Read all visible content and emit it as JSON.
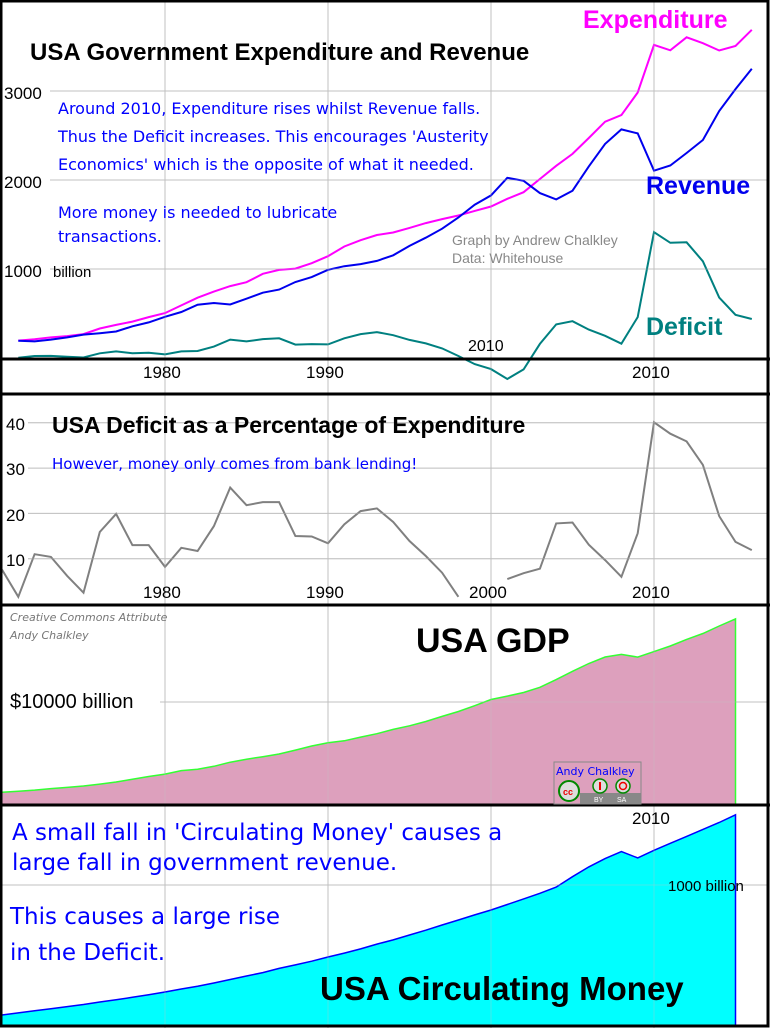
{
  "colors": {
    "expenditure": "#ff00ff",
    "revenue": "#0000ee",
    "deficit": "#008080",
    "deficit_pct": "#808080",
    "gdp_fill": "#dda0bd",
    "gdp_line": "#33ff33",
    "money_fill": "#00ffff",
    "money_line": "#0000ff",
    "annotation": "#0000ff",
    "grid": "#c0c0c0"
  },
  "chart_data": [
    {
      "type": "line",
      "title": "USA Government Expenditure and Revenue",
      "ylabel": "billion",
      "y_ticks": [
        "3000",
        "2000",
        "1000"
      ],
      "y_unit_label": "billion",
      "x_ticks": [
        "1980",
        "1990",
        "2010"
      ],
      "stray_label": "2010",
      "grid": true,
      "ylim": [
        0,
        3900
      ],
      "x": [
        1971,
        1972,
        1973,
        1974,
        1975,
        1976,
        1977,
        1978,
        1979,
        1980,
        1981,
        1982,
        1983,
        1984,
        1985,
        1986,
        1987,
        1988,
        1989,
        1990,
        1991,
        1992,
        1993,
        1994,
        1995,
        1996,
        1997,
        1998,
        1999,
        2000,
        2001,
        2002,
        2003,
        2004,
        2005,
        2006,
        2007,
        2008,
        2009,
        2010,
        2011,
        2012,
        2013,
        2014,
        2015,
        2016
      ],
      "series": [
        {
          "name": "Expenditure",
          "values": [
            196,
            210,
            231,
            246,
            269,
            332,
            372,
            409,
            459,
            504,
            591,
            678,
            746,
            808,
            852,
            946,
            990,
            1004,
            1065,
            1144,
            1253,
            1324,
            1382,
            1410,
            1462,
            1516,
            1561,
            1601,
            1653,
            1702,
            1789,
            1863,
            2011,
            2160,
            2293,
            2472,
            2655,
            2729,
            2983,
            3518,
            3457,
            3603,
            3537,
            3455,
            3506,
            3688
          ]
        },
        {
          "name": "Revenue",
          "values": [
            193,
            187,
            207,
            231,
            263,
            279,
            298,
            356,
            400,
            463,
            517,
            599,
            618,
            601,
            666,
            734,
            769,
            854,
            909,
            991,
            1032,
            1055,
            1091,
            1154,
            1259,
            1352,
            1453,
            1579,
            1722,
            1827,
            2025,
            1991,
            1853,
            1782,
            1880,
            2153,
            2406,
            2568,
            2524,
            2105,
            2163,
            2303,
            2450,
            2775,
            3021,
            3250
          ]
        },
        {
          "name": "Deficit",
          "values": [
            3,
            23,
            24,
            15,
            6,
            53,
            74,
            53,
            59,
            41,
            74,
            79,
            128,
            207,
            186,
            212,
            221,
            150,
            156,
            153,
            221,
            269,
            291,
            256,
            203,
            164,
            108,
            22,
            -69,
            -125,
            -236,
            -128,
            158,
            378,
            413,
            319,
            249,
            161,
            459,
            1413,
            1294,
            1300,
            1087,
            680,
            485,
            438
          ]
        }
      ],
      "annotations": [
        "Around 2010, Expenditure rises whilst Revenue falls.",
        "Thus the Deficit increases. This encourages 'Austerity",
        "Economics' which is the opposite of what it needed.",
        "More money is needed to lubricate",
        "transactions."
      ],
      "credit": [
        "Graph by Andrew Chalkley",
        "Data: Whitehouse"
      ]
    },
    {
      "type": "line",
      "title": "USA Deficit as a Percentage of Expenditure",
      "annotation": "However, money only comes from bank lending!",
      "y_ticks": [
        "40",
        "30",
        "20",
        "10"
      ],
      "x_ticks": [
        "1980",
        "1990",
        "2000",
        "2010"
      ],
      "grid": true,
      "ylim": [
        0,
        44
      ],
      "x": [
        1970,
        1971,
        1972,
        1973,
        1974,
        1975,
        1976,
        1977,
        1978,
        1979,
        1980,
        1981,
        1982,
        1983,
        1984,
        1985,
        1986,
        1987,
        1988,
        1989,
        1990,
        1991,
        1992,
        1993,
        1994,
        1995,
        1996,
        1997,
        1998,
        1999,
        2000,
        2001,
        2002,
        2003,
        2004,
        2005,
        2006,
        2007,
        2008,
        2009,
        2010,
        2011,
        2012,
        2013,
        2014,
        2015,
        2016
      ],
      "values": [
        7.6,
        1.6,
        11.0,
        10.4,
        6.2,
        2.5,
        15.9,
        19.9,
        13.0,
        13.0,
        8.2,
        12.4,
        11.7,
        17.2,
        25.7,
        21.8,
        22.5,
        22.5,
        15.0,
        14.9,
        13.4,
        17.6,
        20.5,
        21.1,
        18.1,
        13.9,
        10.6,
        6.9,
        1.6,
        null,
        null,
        5.5,
        6.8,
        7.8,
        17.8,
        18.0,
        13.1,
        9.7,
        6.0,
        15.6,
        40.1,
        37.6,
        35.9,
        30.7,
        19.4,
        13.7,
        11.9
      ]
    },
    {
      "type": "area",
      "title": "USA GDP",
      "y_ticks": [
        "$10000 billion"
      ],
      "grid": true,
      "ylim": [
        0,
        19500
      ],
      "x": [
        1970,
        1971,
        1972,
        1973,
        1974,
        1975,
        1976,
        1977,
        1978,
        1979,
        1980,
        1981,
        1982,
        1983,
        1984,
        1985,
        1986,
        1987,
        1988,
        1989,
        1990,
        1991,
        1992,
        1993,
        1994,
        1995,
        1996,
        1997,
        1998,
        1999,
        2000,
        2001,
        2002,
        2003,
        2004,
        2005,
        2006,
        2007,
        2008,
        2009,
        2010,
        2011,
        2012,
        2013,
        2014,
        2015
      ],
      "values": [
        1073,
        1165,
        1280,
        1425,
        1545,
        1684,
        1873,
        2082,
        2352,
        2627,
        2857,
        3207,
        3343,
        3634,
        4037,
        4339,
        4580,
        4855,
        5236,
        5642,
        5963,
        6158,
        6520,
        6859,
        7287,
        7640,
        8073,
        8577,
        9062,
        9631,
        10252,
        10582,
        10936,
        11458,
        12214,
        13037,
        13815,
        14452,
        14713,
        14449,
        14992,
        15543,
        16197,
        16785,
        17522,
        18225
      ],
      "credit": [
        "Creative Commons Attribute",
        "Andy Chalkley"
      ],
      "badge": {
        "name": "Andy Chalkley",
        "icons": [
          "cc-icon",
          "by-icon",
          "sa-icon"
        ],
        "labels": [
          "BY",
          "SA"
        ]
      }
    },
    {
      "type": "area",
      "title": "USA Circulating Money",
      "y_ticks": [
        "1000 billion"
      ],
      "x_ticks": [
        "2010"
      ],
      "grid": true,
      "ylim": [
        0,
        1560
      ],
      "x": [
        1970,
        1971,
        1972,
        1973,
        1974,
        1975,
        1976,
        1977,
        1978,
        1979,
        1980,
        1981,
        1982,
        1983,
        1984,
        1985,
        1986,
        1987,
        1988,
        1989,
        1990,
        1991,
        1992,
        1993,
        1994,
        1995,
        1996,
        1997,
        1998,
        1999,
        2000,
        2001,
        2002,
        2003,
        2004,
        2005,
        2006,
        2007,
        2008,
        2009,
        2010,
        2011,
        2012,
        2013,
        2014,
        2015
      ],
      "values": [
        65,
        80,
        95,
        110,
        125,
        140,
        158,
        175,
        192,
        210,
        230,
        252,
        272,
        295,
        320,
        345,
        370,
        400,
        425,
        452,
        482,
        510,
        540,
        575,
        605,
        640,
        675,
        712,
        748,
        785,
        820,
        860,
        900,
        940,
        985,
        1060,
        1130,
        1190,
        1240,
        1195,
        1250,
        1300,
        1350,
        1400,
        1450,
        1505
      ],
      "annotations": [
        "A small fall in 'Circulating Money' causes a",
        "large fall in government revenue.",
        "This causes a large rise",
        " in the Deficit."
      ]
    }
  ]
}
